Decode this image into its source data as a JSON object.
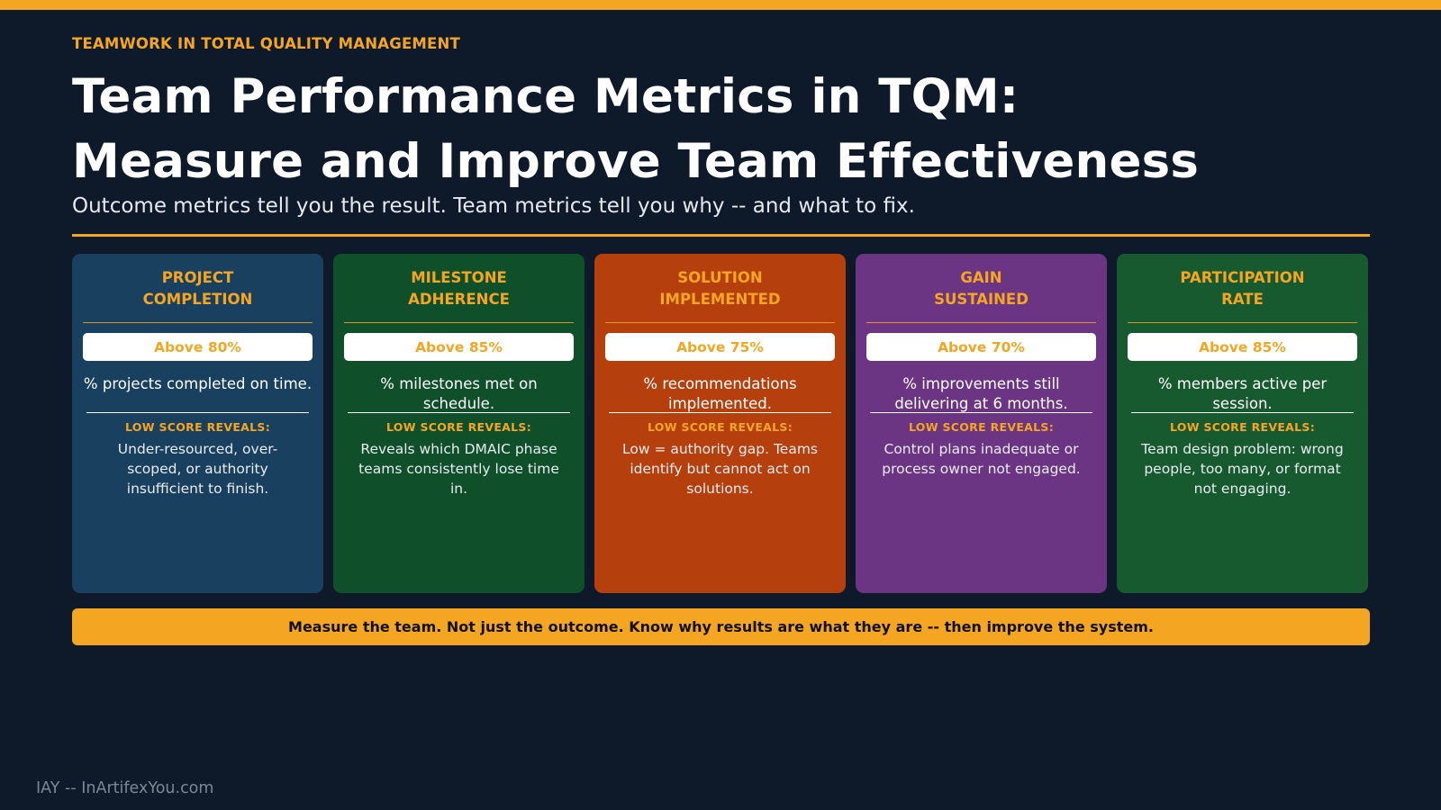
{
  "colors": {
    "background": "#0e1a2a",
    "accent": "#f4a623",
    "card_blue": "#1a4060",
    "card_green": "#0f4f2a",
    "card_orange": "#b5400e",
    "card_purple": "#6b3584",
    "card_green2": "#185a30"
  },
  "header": {
    "eyebrow": "TEAMWORK IN TOTAL QUALITY MANAGEMENT",
    "title_line1": "Team Performance Metrics in TQM:",
    "title_line2": "Measure and Improve Team Effectiveness",
    "subtitle": "Outcome metrics tell you the result. Team metrics tell you why -- and what to fix."
  },
  "cards": [
    {
      "title_line1": "PROJECT",
      "title_line2": "COMPLETION",
      "target": "Above 80%",
      "description": "% projects completed on time.",
      "low_label": "LOW SCORE REVEALS:",
      "reveal": "Under-resourced, over-scoped, or authority insufficient to finish."
    },
    {
      "title_line1": "MILESTONE",
      "title_line2": "ADHERENCE",
      "target": "Above 85%",
      "description": "% milestones met on schedule.",
      "low_label": "LOW SCORE REVEALS:",
      "reveal": "Reveals which DMAIC phase teams consistently lose time in."
    },
    {
      "title_line1": "SOLUTION",
      "title_line2": "IMPLEMENTED",
      "target": "Above 75%",
      "description": "% recommendations implemented.",
      "low_label": "LOW SCORE REVEALS:",
      "reveal": "Low = authority gap. Teams identify but cannot act on solutions."
    },
    {
      "title_line1": "GAIN",
      "title_line2": "SUSTAINED",
      "target": "Above 70%",
      "description": "% improvements still delivering at 6 months.",
      "low_label": "LOW SCORE REVEALS:",
      "reveal": "Control plans inadequate or process owner not engaged."
    },
    {
      "title_line1": "PARTICIPATION",
      "title_line2": "RATE",
      "target": "Above 85%",
      "description": "% members active per session.",
      "low_label": "LOW SCORE REVEALS:",
      "reveal": "Team design problem: wrong people, too many, or format not engaging."
    }
  ],
  "banner": "Measure the team. Not just the outcome. Know why results are what they are -- then improve the system.",
  "footer": "IAY -- InArtifexYou.com"
}
